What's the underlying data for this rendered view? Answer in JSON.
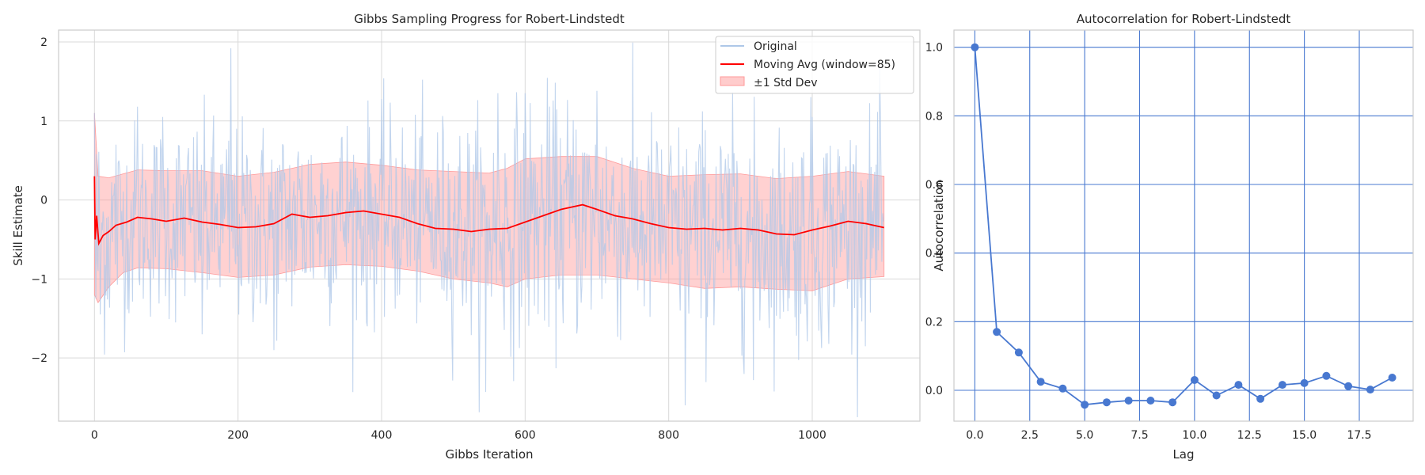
{
  "chart_data": [
    {
      "type": "line",
      "title": "Gibbs Sampling Progress for Robert-Lindstedt",
      "xlabel": "Gibbs Iteration",
      "ylabel": "Skill Estimate",
      "xlim": [
        -50,
        1150
      ],
      "ylim": [
        -2.8,
        2.15
      ],
      "xticks": [
        0,
        200,
        400,
        600,
        800,
        1000
      ],
      "xtick_labels": [
        "0",
        "200",
        "400",
        "600",
        "800",
        "1000"
      ],
      "yticks": [
        -2,
        -1,
        0,
        1,
        2
      ],
      "ytick_labels": [
        "−2",
        "−1",
        "0",
        "1",
        "2"
      ],
      "grid": true,
      "legend_position": "top-right",
      "series": [
        {
          "name": "Original",
          "color": "#aec7e8",
          "n_points": 1100,
          "observed_range": [
            -2.6,
            1.92
          ],
          "values_sample": [
            {
              "x": 0,
              "y": 1.1
            },
            {
              "x": 2,
              "y": -1.25
            },
            {
              "x": 5,
              "y": -0.9
            },
            {
              "x": 8,
              "y": -1.45
            },
            {
              "x": 30,
              "y": 0.7
            },
            {
              "x": 60,
              "y": 1.18
            },
            {
              "x": 95,
              "y": 1.05
            },
            {
              "x": 150,
              "y": -1.7
            },
            {
              "x": 190,
              "y": 1.92
            },
            {
              "x": 250,
              "y": -1.9
            },
            {
              "x": 380,
              "y": -1.6
            },
            {
              "x": 545,
              "y": -2.43
            },
            {
              "x": 562,
              "y": 1.35
            },
            {
              "x": 600,
              "y": 1.35
            },
            {
              "x": 700,
              "y": 1.38
            },
            {
              "x": 823,
              "y": -2.6
            },
            {
              "x": 918,
              "y": -2.28
            },
            {
              "x": 1000,
              "y": 1.05
            },
            {
              "x": 1095,
              "y": 1.05
            }
          ]
        },
        {
          "name": "Moving Avg (window=85)",
          "color": "#ff0000",
          "values": [
            {
              "x": 0,
              "y": 0.3
            },
            {
              "x": 1,
              "y": -0.5
            },
            {
              "x": 3,
              "y": -0.2
            },
            {
              "x": 6,
              "y": -0.55
            },
            {
              "x": 12,
              "y": -0.45
            },
            {
              "x": 20,
              "y": -0.4
            },
            {
              "x": 30,
              "y": -0.32
            },
            {
              "x": 45,
              "y": -0.28
            },
            {
              "x": 60,
              "y": -0.22
            },
            {
              "x": 80,
              "y": -0.24
            },
            {
              "x": 100,
              "y": -0.27
            },
            {
              "x": 125,
              "y": -0.23
            },
            {
              "x": 150,
              "y": -0.28
            },
            {
              "x": 175,
              "y": -0.31
            },
            {
              "x": 200,
              "y": -0.35
            },
            {
              "x": 225,
              "y": -0.34
            },
            {
              "x": 250,
              "y": -0.3
            },
            {
              "x": 275,
              "y": -0.18
            },
            {
              "x": 300,
              "y": -0.22
            },
            {
              "x": 325,
              "y": -0.2
            },
            {
              "x": 350,
              "y": -0.16
            },
            {
              "x": 375,
              "y": -0.14
            },
            {
              "x": 400,
              "y": -0.18
            },
            {
              "x": 425,
              "y": -0.22
            },
            {
              "x": 450,
              "y": -0.3
            },
            {
              "x": 475,
              "y": -0.36
            },
            {
              "x": 500,
              "y": -0.37
            },
            {
              "x": 525,
              "y": -0.4
            },
            {
              "x": 550,
              "y": -0.37
            },
            {
              "x": 575,
              "y": -0.36
            },
            {
              "x": 600,
              "y": -0.28
            },
            {
              "x": 625,
              "y": -0.2
            },
            {
              "x": 650,
              "y": -0.12
            },
            {
              "x": 680,
              "y": -0.06
            },
            {
              "x": 700,
              "y": -0.12
            },
            {
              "x": 725,
              "y": -0.2
            },
            {
              "x": 750,
              "y": -0.24
            },
            {
              "x": 775,
              "y": -0.3
            },
            {
              "x": 800,
              "y": -0.35
            },
            {
              "x": 825,
              "y": -0.37
            },
            {
              "x": 850,
              "y": -0.36
            },
            {
              "x": 875,
              "y": -0.38
            },
            {
              "x": 900,
              "y": -0.36
            },
            {
              "x": 925,
              "y": -0.38
            },
            {
              "x": 950,
              "y": -0.43
            },
            {
              "x": 975,
              "y": -0.44
            },
            {
              "x": 1000,
              "y": -0.38
            },
            {
              "x": 1025,
              "y": -0.33
            },
            {
              "x": 1050,
              "y": -0.27
            },
            {
              "x": 1075,
              "y": -0.3
            },
            {
              "x": 1100,
              "y": -0.35
            }
          ]
        },
        {
          "name": "±1 Std Dev",
          "color": "#ff9999",
          "type": "band",
          "values": [
            {
              "x": 0,
              "lower": -1.2,
              "upper": 1.1
            },
            {
              "x": 5,
              "lower": -1.3,
              "upper": 0.3
            },
            {
              "x": 20,
              "lower": -1.1,
              "upper": 0.28
            },
            {
              "x": 40,
              "lower": -0.92,
              "upper": 0.33
            },
            {
              "x": 60,
              "lower": -0.86,
              "upper": 0.38
            },
            {
              "x": 100,
              "lower": -0.87,
              "upper": 0.37
            },
            {
              "x": 150,
              "lower": -0.92,
              "upper": 0.37
            },
            {
              "x": 200,
              "lower": -0.98,
              "upper": 0.3
            },
            {
              "x": 250,
              "lower": -0.95,
              "upper": 0.35
            },
            {
              "x": 300,
              "lower": -0.85,
              "upper": 0.45
            },
            {
              "x": 350,
              "lower": -0.82,
              "upper": 0.48
            },
            {
              "x": 400,
              "lower": -0.84,
              "upper": 0.44
            },
            {
              "x": 450,
              "lower": -0.9,
              "upper": 0.38
            },
            {
              "x": 500,
              "lower": -1.0,
              "upper": 0.36
            },
            {
              "x": 550,
              "lower": -1.05,
              "upper": 0.34
            },
            {
              "x": 575,
              "lower": -1.1,
              "upper": 0.4
            },
            {
              "x": 600,
              "lower": -1.0,
              "upper": 0.52
            },
            {
              "x": 650,
              "lower": -0.95,
              "upper": 0.55
            },
            {
              "x": 700,
              "lower": -0.95,
              "upper": 0.55
            },
            {
              "x": 750,
              "lower": -1.0,
              "upper": 0.4
            },
            {
              "x": 800,
              "lower": -1.05,
              "upper": 0.3
            },
            {
              "x": 850,
              "lower": -1.12,
              "upper": 0.32
            },
            {
              "x": 900,
              "lower": -1.1,
              "upper": 0.33
            },
            {
              "x": 950,
              "lower": -1.13,
              "upper": 0.27
            },
            {
              "x": 1000,
              "lower": -1.15,
              "upper": 0.3
            },
            {
              "x": 1050,
              "lower": -1.0,
              "upper": 0.36
            },
            {
              "x": 1100,
              "lower": -0.97,
              "upper": 0.3
            }
          ]
        }
      ]
    },
    {
      "type": "line",
      "title": "Autocorrelation for Robert-Lindstedt",
      "xlabel": "Lag",
      "ylabel": "Autocorrelation",
      "xlim": [
        -0.95,
        19.95
      ],
      "ylim": [
        -0.09,
        1.05
      ],
      "xticks": [
        0,
        2.5,
        5,
        7.5,
        10,
        12.5,
        15,
        17.5
      ],
      "xtick_labels": [
        "0.0",
        "2.5",
        "5.0",
        "7.5",
        "10.0",
        "12.5",
        "15.0",
        "17.5"
      ],
      "yticks": [
        0,
        0.2,
        0.4,
        0.6,
        0.8,
        1.0
      ],
      "ytick_labels": [
        "0.0",
        "0.2",
        "0.4",
        "0.6",
        "0.8",
        "1.0"
      ],
      "grid": true,
      "series": [
        {
          "color": "#4878d0",
          "marker": "circle",
          "x": [
            0,
            1,
            2,
            3,
            4,
            5,
            6,
            7,
            8,
            9,
            10,
            11,
            12,
            13,
            14,
            15,
            16,
            17,
            18,
            19
          ],
          "values": [
            1.0,
            0.17,
            0.11,
            0.025,
            0.005,
            -0.042,
            -0.035,
            -0.03,
            -0.03,
            -0.035,
            0.03,
            -0.015,
            0.016,
            -0.025,
            0.016,
            0.021,
            0.042,
            0.012,
            0.002,
            0.037
          ]
        }
      ]
    }
  ]
}
